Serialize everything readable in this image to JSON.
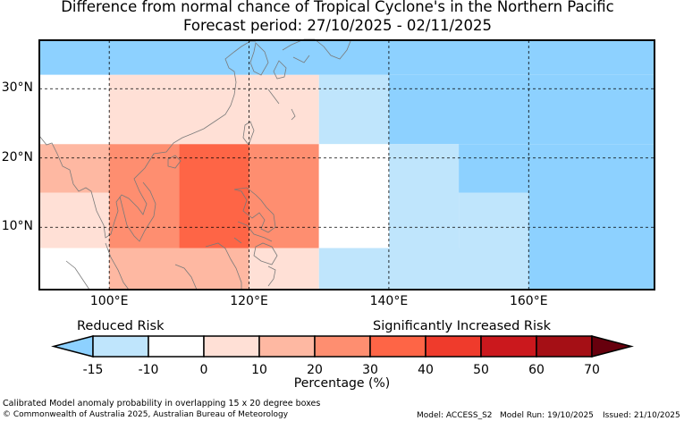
{
  "title": {
    "line1": "Difference from normal chance of Tropical Cyclone's in the Northern Pacific",
    "line2": "Forecast period: 27/10/2025 - 02/11/2025"
  },
  "map": {
    "lon_range": [
      90,
      178
    ],
    "lat_range": [
      1,
      37
    ],
    "lat_labels": [
      {
        "value": 30,
        "label": "30°N"
      },
      {
        "value": 20,
        "label": "20°N"
      },
      {
        "value": 10,
        "label": "10°N"
      }
    ],
    "lon_labels": [
      {
        "value": 100,
        "label": "100°E"
      },
      {
        "value": 120,
        "label": "120°E"
      },
      {
        "value": 140,
        "label": "140°E"
      },
      {
        "value": 160,
        "label": "160°E"
      }
    ],
    "cells": [
      {
        "lon0": 90,
        "lon1": 178,
        "lat0": 32,
        "lat1": 37,
        "class": "-15"
      },
      {
        "lon0": 90,
        "lon1": 100,
        "lat0": 22,
        "lat1": 32,
        "class": "-10"
      },
      {
        "lon0": 100,
        "lon1": 130,
        "lat0": 22,
        "lat1": 32,
        "class": "0"
      },
      {
        "lon0": 130,
        "lon1": 140,
        "lat0": 22,
        "lat1": 32,
        "class": "-10-15"
      },
      {
        "lon0": 140,
        "lon1": 178,
        "lat0": 22,
        "lat1": 32,
        "class": "-15"
      },
      {
        "lon0": 90,
        "lon1": 100,
        "lat0": 15,
        "lat1": 22,
        "class": "10"
      },
      {
        "lon0": 100,
        "lon1": 110,
        "lat0": 15,
        "lat1": 22,
        "class": "20"
      },
      {
        "lon0": 110,
        "lon1": 120,
        "lat0": 15,
        "lat1": 22,
        "class": "30"
      },
      {
        "lon0": 120,
        "lon1": 130,
        "lat0": 15,
        "lat1": 22,
        "class": "20"
      },
      {
        "lon0": 130,
        "lon1": 140,
        "lat0": 15,
        "lat1": 22,
        "class": "-10"
      },
      {
        "lon0": 140,
        "lon1": 150,
        "lat0": 15,
        "lat1": 22,
        "class": "-10-15"
      },
      {
        "lon0": 150,
        "lon1": 178,
        "lat0": 15,
        "lat1": 22,
        "class": "-15"
      },
      {
        "lon0": 90,
        "lon1": 100,
        "lat0": 7,
        "lat1": 15,
        "class": "0"
      },
      {
        "lon0": 100,
        "lon1": 110,
        "lat0": 7,
        "lat1": 15,
        "class": "20"
      },
      {
        "lon0": 110,
        "lon1": 120,
        "lat0": 7,
        "lat1": 15,
        "class": "30"
      },
      {
        "lon0": 120,
        "lon1": 130,
        "lat0": 7,
        "lat1": 15,
        "class": "20"
      },
      {
        "lon0": 130,
        "lon1": 140,
        "lat0": 7,
        "lat1": 15,
        "class": "-10"
      },
      {
        "lon0": 140,
        "lon1": 150,
        "lat0": 7,
        "lat1": 15,
        "class": "-10-15"
      },
      {
        "lon0": 150,
        "lon1": 160,
        "lat0": 7,
        "lat1": 15,
        "class": "-10-15"
      },
      {
        "lon0": 160,
        "lon1": 178,
        "lat0": 7,
        "lat1": 15,
        "class": "-15"
      },
      {
        "lon0": 90,
        "lon1": 100,
        "lat0": 1,
        "lat1": 7,
        "class": "-10"
      },
      {
        "lon0": 100,
        "lon1": 120,
        "lat0": 1,
        "lat1": 7,
        "class": "10"
      },
      {
        "lon0": 120,
        "lon1": 130,
        "lat0": 1,
        "lat1": 7,
        "class": "0"
      },
      {
        "lon0": 130,
        "lon1": 160,
        "lat0": 1,
        "lat1": 7,
        "class": "-10-15"
      },
      {
        "lon0": 160,
        "lon1": 178,
        "lat0": 1,
        "lat1": 7,
        "class": "-15"
      }
    ]
  },
  "colors": {
    "-15": "#8dd1ff",
    "-10-15": "#bfe5fc",
    "-10": "#ffffff",
    "0": "#ffe0d6",
    "10": "#feb8a2",
    "20": "#fe8e70",
    "30": "#fe6546",
    "coast": "#7a7a7a",
    "grid": "#000000"
  },
  "colorbar": {
    "reduced_label": "Reduced Risk",
    "increased_label": "Significantly Increased Risk",
    "ticks": [
      "-15",
      "-10",
      "0",
      "10",
      "20",
      "30",
      "40",
      "50",
      "60",
      "70"
    ],
    "colors": [
      "#8dd1ff",
      "#bfe5fc",
      "#ffffff",
      "#ffe0d6",
      "#feb8a2",
      "#fe8e70",
      "#fe6546",
      "#ef3b2c",
      "#cb181d",
      "#a50f15",
      "#67000d"
    ],
    "label": "Percentage (%)"
  },
  "footer": {
    "note": "Calibrated Model anomaly probability in overlapping 15 x 20 degree boxes",
    "copyright": "© Commonwealth of Australia 2025, Australian Bureau of Meteorology",
    "model": "Model: ACCESS_S2",
    "run": "Model Run: 19/10/2025",
    "issued": "Issued: 21/10/2025"
  }
}
